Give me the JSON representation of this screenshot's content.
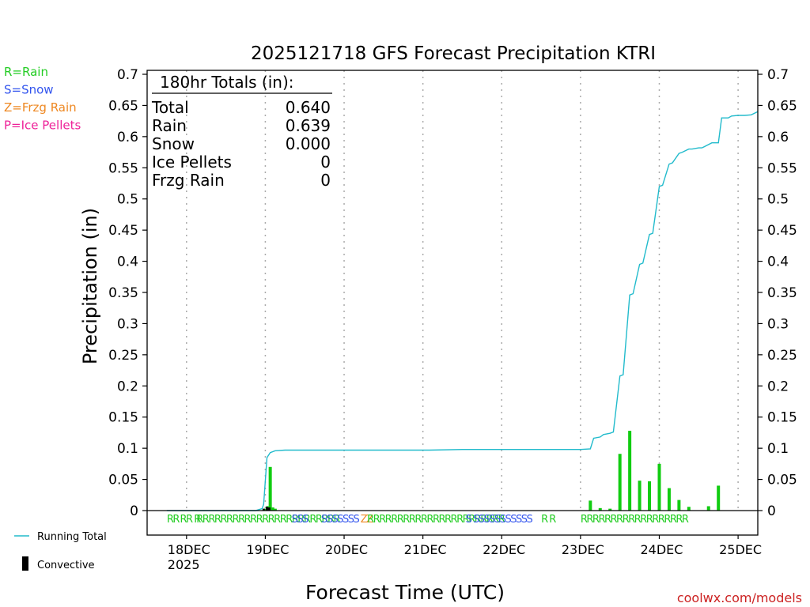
{
  "chart_data": {
    "type": "line",
    "title": "2025121718 GFS Forecast Precipitation KTRI",
    "xlabel": "Forecast Time (UTC)",
    "ylabel": "Precipitation (in)",
    "ylim": [
      0,
      0.7
    ],
    "xlim_hours": [
      -6,
      180
    ],
    "y_ticks": [
      "0",
      "0.05",
      "0.1",
      "0.15",
      "0.2",
      "0.25",
      "0.3",
      "0.35",
      "0.4",
      "0.45",
      "0.5",
      "0.55",
      "0.6",
      "0.65",
      "0.7"
    ],
    "x_ticks": [
      {
        "hour": 6,
        "label": "18DEC",
        "sub": "2025"
      },
      {
        "hour": 30,
        "label": "19DEC",
        "sub": ""
      },
      {
        "hour": 54,
        "label": "20DEC",
        "sub": ""
      },
      {
        "hour": 78,
        "label": "21DEC",
        "sub": ""
      },
      {
        "hour": 102,
        "label": "22DEC",
        "sub": ""
      },
      {
        "hour": 126,
        "label": "23DEC",
        "sub": ""
      },
      {
        "hour": 150,
        "label": "24DEC",
        "sub": ""
      },
      {
        "hour": 174,
        "label": "25DEC",
        "sub": ""
      }
    ],
    "legend": [
      {
        "text": "R=Rain",
        "color": "#22cc22"
      },
      {
        "text": "S=Snow",
        "color": "#3355ee"
      },
      {
        "text": "Z=Frzg Rain",
        "color": "#ee8822"
      },
      {
        "text": "P=Ice Pellets",
        "color": "#ee2299"
      }
    ],
    "series_legend": [
      {
        "name": "Running Total",
        "color": "#22bbcc"
      },
      {
        "name": "Convective",
        "color": "#000000"
      }
    ],
    "totals": {
      "header": "180hr Totals (in):",
      "rows": [
        {
          "label": "Total",
          "value": "0.640"
        },
        {
          "label": "Rain",
          "value": "0.639"
        },
        {
          "label": "Snow",
          "value": "0.000"
        },
        {
          "label": "Ice Pellets",
          "value": "0"
        },
        {
          "label": "Frzg Rain",
          "value": "0"
        }
      ]
    },
    "running_total": {
      "hours": [
        0,
        27,
        29,
        29.5,
        30.5,
        31.5,
        33,
        36,
        54,
        80,
        90,
        126,
        129,
        130,
        132,
        133,
        135,
        136,
        138,
        139,
        141,
        142,
        144,
        145,
        147,
        148,
        150,
        151,
        153,
        154,
        156,
        157,
        159,
        160,
        162,
        163,
        166,
        168,
        169,
        171,
        172,
        174,
        176,
        178,
        180
      ],
      "values": [
        0,
        0,
        0.003,
        0.01,
        0.085,
        0.093,
        0.096,
        0.097,
        0.097,
        0.097,
        0.098,
        0.098,
        0.099,
        0.116,
        0.118,
        0.122,
        0.124,
        0.126,
        0.216,
        0.218,
        0.346,
        0.348,
        0.395,
        0.397,
        0.443,
        0.445,
        0.52,
        0.522,
        0.556,
        0.558,
        0.573,
        0.575,
        0.58,
        0.58,
        0.582,
        0.582,
        0.59,
        0.59,
        0.63,
        0.63,
        0.633,
        0.634,
        0.634,
        0.635,
        0.64
      ]
    },
    "bars": {
      "hours": [
        30,
        30.75,
        31.5,
        32.25,
        33,
        129,
        132,
        135,
        138,
        141,
        144,
        147,
        150,
        153,
        156,
        159,
        165,
        168
      ],
      "values": [
        0.003,
        0.007,
        0.07,
        0.005,
        0.003,
        0.016,
        0.004,
        0.003,
        0.091,
        0.128,
        0.048,
        0.047,
        0.075,
        0.036,
        0.017,
        0.006,
        0.007,
        0.04
      ]
    },
    "convective_bars": {
      "hours": [
        29.5,
        30.5,
        31.2
      ],
      "values": [
        0.003,
        0.006,
        0.005
      ]
    },
    "ptype_strip": [
      {
        "hour": 0,
        "text": "RR",
        "type": "rain"
      },
      {
        "hour": 4,
        "text": "RR R",
        "type": "rain"
      },
      {
        "hour": 9,
        "text": "RRRRRRRRRRRRRRRRRRRRRRRR",
        "type": "rain"
      },
      {
        "hour": 38,
        "text": "SSS",
        "type": "snow"
      },
      {
        "hour": 47,
        "text": "SSSSSSS",
        "type": "snow"
      },
      {
        "hour": 59,
        "text": "ZZ",
        "type": "frzg"
      },
      {
        "hour": 61,
        "text": "RRRRRRRRRRRRRRRRRRRRRRR",
        "type": "rain"
      },
      {
        "hour": 91,
        "text": "S SSSSSSSSSSS",
        "type": "snow"
      },
      {
        "hour": 114,
        "text": "R R",
        "type": "rain"
      },
      {
        "hour": 126,
        "text": "RRRRRRRRRRRRRRRRRR",
        "type": "rain"
      }
    ],
    "credit": "coolwx.com/models"
  },
  "colors": {
    "rain": "#22cc22",
    "snow": "#3355ee",
    "frzg": "#ee8822",
    "pellets": "#ee2299",
    "running_total": "#22bbcc",
    "bar": "#11cc11",
    "convective": "#000000",
    "grid": "#aaaaaa"
  }
}
